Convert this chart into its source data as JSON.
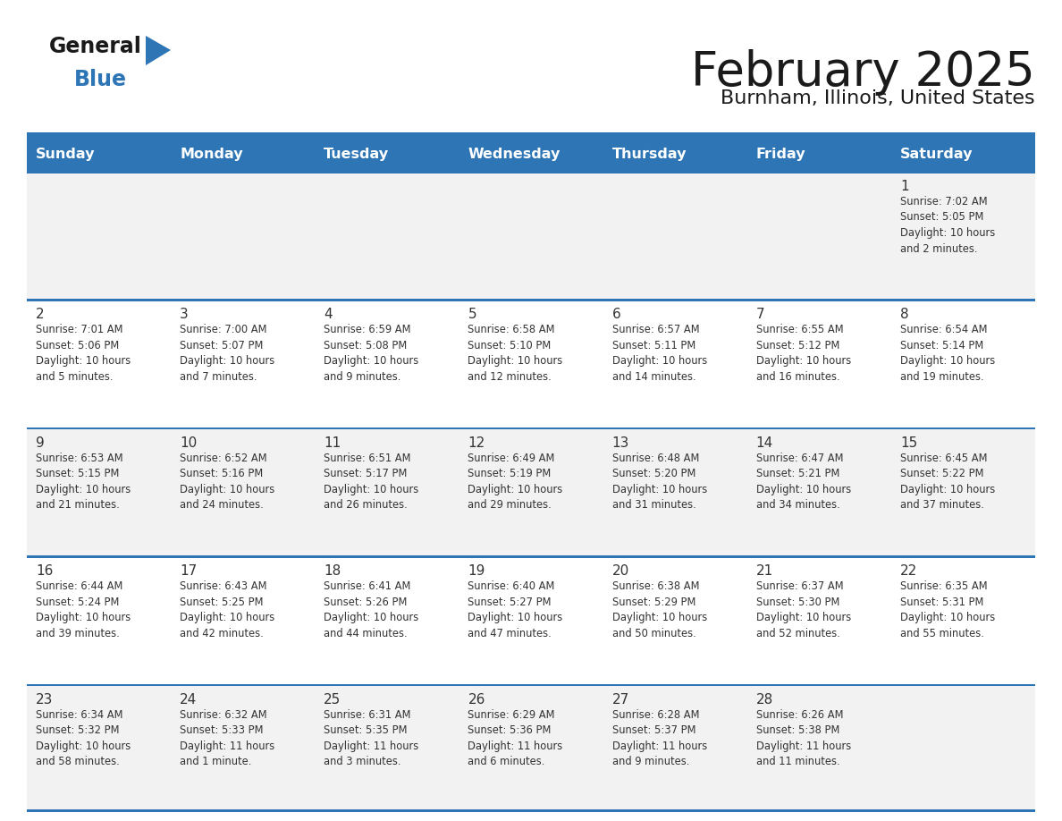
{
  "title": "February 2025",
  "subtitle": "Burnham, Illinois, United States",
  "header_bg": "#2E75B6",
  "header_text_color": "#FFFFFF",
  "cell_bg_light": "#F2F2F2",
  "cell_bg_white": "#FFFFFF",
  "separator_color": "#2E75B6",
  "text_color": "#333333",
  "day_headers": [
    "Sunday",
    "Monday",
    "Tuesday",
    "Wednesday",
    "Thursday",
    "Friday",
    "Saturday"
  ],
  "logo_general_color": "#1a1a1a",
  "logo_blue_color": "#2E75B6",
  "logo_triangle_color": "#2E75B6",
  "calendar_data": [
    [
      {
        "day": "",
        "info": ""
      },
      {
        "day": "",
        "info": ""
      },
      {
        "day": "",
        "info": ""
      },
      {
        "day": "",
        "info": ""
      },
      {
        "day": "",
        "info": ""
      },
      {
        "day": "",
        "info": ""
      },
      {
        "day": "1",
        "info": "Sunrise: 7:02 AM\nSunset: 5:05 PM\nDaylight: 10 hours\nand 2 minutes."
      }
    ],
    [
      {
        "day": "2",
        "info": "Sunrise: 7:01 AM\nSunset: 5:06 PM\nDaylight: 10 hours\nand 5 minutes."
      },
      {
        "day": "3",
        "info": "Sunrise: 7:00 AM\nSunset: 5:07 PM\nDaylight: 10 hours\nand 7 minutes."
      },
      {
        "day": "4",
        "info": "Sunrise: 6:59 AM\nSunset: 5:08 PM\nDaylight: 10 hours\nand 9 minutes."
      },
      {
        "day": "5",
        "info": "Sunrise: 6:58 AM\nSunset: 5:10 PM\nDaylight: 10 hours\nand 12 minutes."
      },
      {
        "day": "6",
        "info": "Sunrise: 6:57 AM\nSunset: 5:11 PM\nDaylight: 10 hours\nand 14 minutes."
      },
      {
        "day": "7",
        "info": "Sunrise: 6:55 AM\nSunset: 5:12 PM\nDaylight: 10 hours\nand 16 minutes."
      },
      {
        "day": "8",
        "info": "Sunrise: 6:54 AM\nSunset: 5:14 PM\nDaylight: 10 hours\nand 19 minutes."
      }
    ],
    [
      {
        "day": "9",
        "info": "Sunrise: 6:53 AM\nSunset: 5:15 PM\nDaylight: 10 hours\nand 21 minutes."
      },
      {
        "day": "10",
        "info": "Sunrise: 6:52 AM\nSunset: 5:16 PM\nDaylight: 10 hours\nand 24 minutes."
      },
      {
        "day": "11",
        "info": "Sunrise: 6:51 AM\nSunset: 5:17 PM\nDaylight: 10 hours\nand 26 minutes."
      },
      {
        "day": "12",
        "info": "Sunrise: 6:49 AM\nSunset: 5:19 PM\nDaylight: 10 hours\nand 29 minutes."
      },
      {
        "day": "13",
        "info": "Sunrise: 6:48 AM\nSunset: 5:20 PM\nDaylight: 10 hours\nand 31 minutes."
      },
      {
        "day": "14",
        "info": "Sunrise: 6:47 AM\nSunset: 5:21 PM\nDaylight: 10 hours\nand 34 minutes."
      },
      {
        "day": "15",
        "info": "Sunrise: 6:45 AM\nSunset: 5:22 PM\nDaylight: 10 hours\nand 37 minutes."
      }
    ],
    [
      {
        "day": "16",
        "info": "Sunrise: 6:44 AM\nSunset: 5:24 PM\nDaylight: 10 hours\nand 39 minutes."
      },
      {
        "day": "17",
        "info": "Sunrise: 6:43 AM\nSunset: 5:25 PM\nDaylight: 10 hours\nand 42 minutes."
      },
      {
        "day": "18",
        "info": "Sunrise: 6:41 AM\nSunset: 5:26 PM\nDaylight: 10 hours\nand 44 minutes."
      },
      {
        "day": "19",
        "info": "Sunrise: 6:40 AM\nSunset: 5:27 PM\nDaylight: 10 hours\nand 47 minutes."
      },
      {
        "day": "20",
        "info": "Sunrise: 6:38 AM\nSunset: 5:29 PM\nDaylight: 10 hours\nand 50 minutes."
      },
      {
        "day": "21",
        "info": "Sunrise: 6:37 AM\nSunset: 5:30 PM\nDaylight: 10 hours\nand 52 minutes."
      },
      {
        "day": "22",
        "info": "Sunrise: 6:35 AM\nSunset: 5:31 PM\nDaylight: 10 hours\nand 55 minutes."
      }
    ],
    [
      {
        "day": "23",
        "info": "Sunrise: 6:34 AM\nSunset: 5:32 PM\nDaylight: 10 hours\nand 58 minutes."
      },
      {
        "day": "24",
        "info": "Sunrise: 6:32 AM\nSunset: 5:33 PM\nDaylight: 11 hours\nand 1 minute."
      },
      {
        "day": "25",
        "info": "Sunrise: 6:31 AM\nSunset: 5:35 PM\nDaylight: 11 hours\nand 3 minutes."
      },
      {
        "day": "26",
        "info": "Sunrise: 6:29 AM\nSunset: 5:36 PM\nDaylight: 11 hours\nand 6 minutes."
      },
      {
        "day": "27",
        "info": "Sunrise: 6:28 AM\nSunset: 5:37 PM\nDaylight: 11 hours\nand 9 minutes."
      },
      {
        "day": "28",
        "info": "Sunrise: 6:26 AM\nSunset: 5:38 PM\nDaylight: 11 hours\nand 11 minutes."
      },
      {
        "day": "",
        "info": ""
      }
    ]
  ]
}
